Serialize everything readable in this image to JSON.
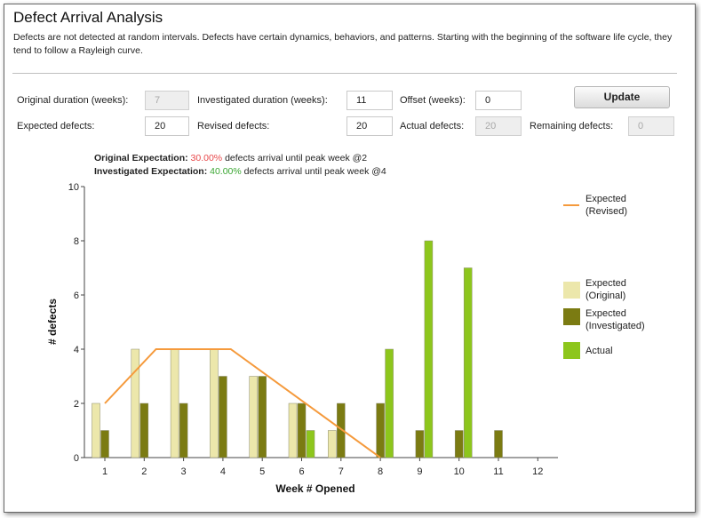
{
  "header": {
    "title": "Defect Arrival Analysis",
    "description": "Defects are not detected at random intervals. Defects have certain dynamics, behaviors, and patterns. Starting with the beginning of the software life cycle, they tend to follow a Rayleigh curve."
  },
  "form": {
    "original_duration": {
      "label": "Original duration (weeks):",
      "value": "7",
      "disabled": true
    },
    "investigated_duration": {
      "label": "Investigated duration (weeks):",
      "value": "11"
    },
    "offset": {
      "label": "Offset (weeks):",
      "value": "0"
    },
    "update_label": "Update",
    "expected_defects": {
      "label": "Expected defects:",
      "value": "20"
    },
    "revised_defects": {
      "label": "Revised defects:",
      "value": "20"
    },
    "actual_defects": {
      "label": "Actual defects:",
      "value": "20",
      "disabled": true
    },
    "remaining_defects": {
      "label": "Remaining defects:",
      "value": "0",
      "disabled": true
    }
  },
  "summary": {
    "original": {
      "label": "Original Expectation:",
      "pct": "30.00%",
      "text": " defects arrival until peak week @2"
    },
    "investigated": {
      "label": "Investigated Expectation:",
      "pct": "40.00%",
      "text": " defects arrival until peak week @4"
    }
  },
  "colors": {
    "expected_original": "#ece7ab",
    "expected_investigated": "#7b7b12",
    "actual": "#8dc61c",
    "expected_revised": "#f59a3c",
    "pct_original": "#e8484a",
    "pct_investigated": "#3aa632"
  },
  "chart_data": {
    "type": "bar",
    "xlabel": "Week # Opened",
    "ylabel": "# defects",
    "ylim": [
      0,
      10
    ],
    "yticks": [
      0,
      2,
      4,
      6,
      8,
      10
    ],
    "categories": [
      "1",
      "2",
      "3",
      "4",
      "5",
      "6",
      "7",
      "8",
      "9",
      "10",
      "11",
      "12"
    ],
    "series": [
      {
        "name": "Expected\n(Original)",
        "key": "expected_original",
        "values": [
          2,
          4,
          4,
          4,
          3,
          2,
          1,
          0,
          0,
          0,
          0,
          0
        ]
      },
      {
        "name": "Expected\n(Investigated)",
        "key": "expected_investigated",
        "values": [
          1,
          2,
          2,
          3,
          3,
          2,
          2,
          2,
          1,
          1,
          1,
          0
        ]
      },
      {
        "name": "Actual",
        "key": "actual",
        "values": [
          0,
          0,
          0,
          0,
          0,
          1,
          0,
          4,
          8,
          7,
          0,
          0
        ]
      }
    ],
    "line_series": {
      "name": "Expected\n(Revised)",
      "key": "expected_revised",
      "x": [
        1,
        2.3,
        4.2,
        8
      ],
      "values": [
        2,
        4,
        4,
        0
      ]
    },
    "legend_position": "right"
  }
}
